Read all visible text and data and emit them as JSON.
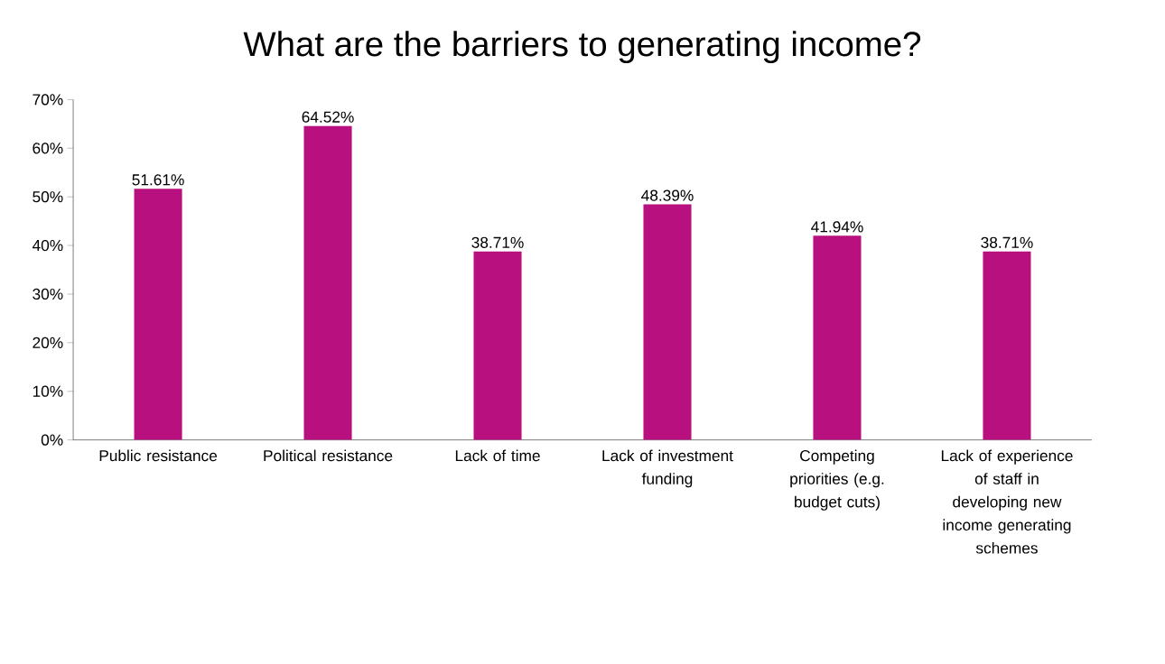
{
  "chart_data": {
    "type": "bar",
    "title": "What are the barriers to generating income?",
    "categories": [
      "Public resistance",
      "Political resistance",
      "Lack of time",
      "Lack of investment funding",
      "Competing priorities (e.g. budget cuts)",
      "Lack of experience of staff in developing new income generating schemes"
    ],
    "values": [
      51.61,
      64.52,
      38.71,
      48.39,
      41.94,
      38.71
    ],
    "value_labels": [
      "51.61%",
      "64.52%",
      "38.71%",
      "48.39%",
      "41.94%",
      "38.71%"
    ],
    "color": "#b8107e",
    "ylim": [
      0,
      70
    ],
    "yticks": [
      {
        "value": 0,
        "label": "0%"
      },
      {
        "value": 10,
        "label": "10%"
      },
      {
        "value": 20,
        "label": "20%"
      },
      {
        "value": 30,
        "label": "30%"
      },
      {
        "value": 40,
        "label": "40%"
      },
      {
        "value": 50,
        "label": "50%"
      },
      {
        "value": 60,
        "label": "60%"
      },
      {
        "value": 70,
        "label": "70%"
      }
    ]
  }
}
